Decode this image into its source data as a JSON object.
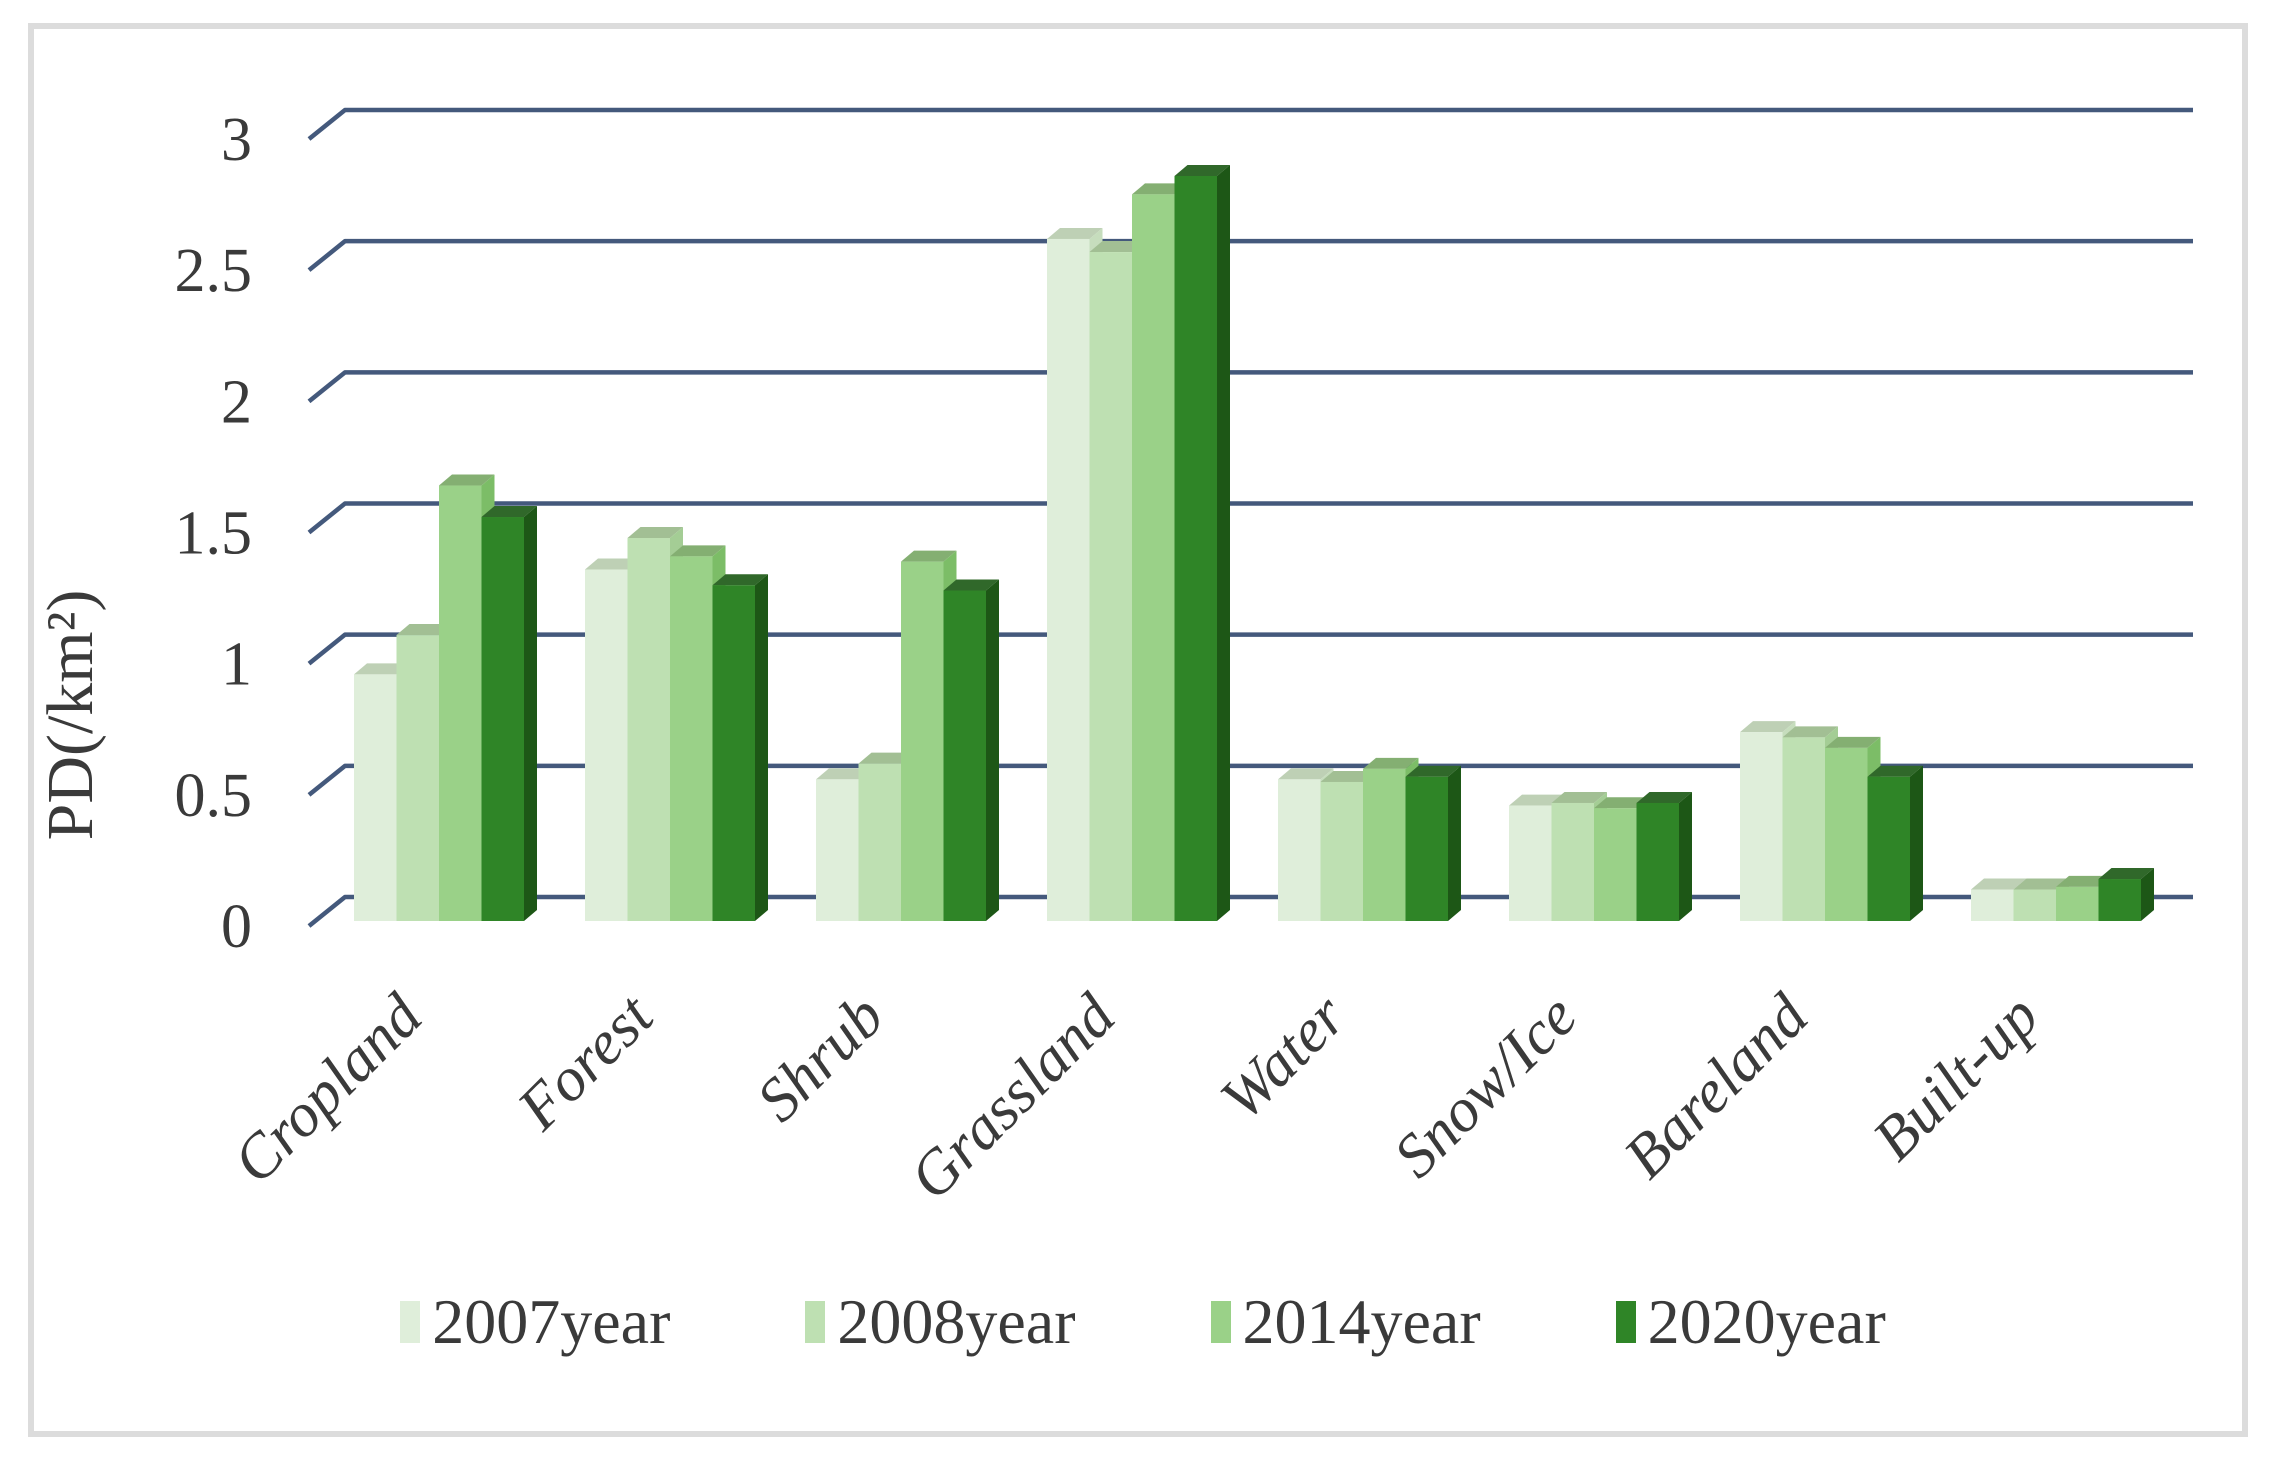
{
  "frame": {
    "border_color": "#dcdcdc",
    "background": "#ffffff"
  },
  "chart_data": {
    "type": "bar",
    "variant": "3d-clustered-column",
    "title": "",
    "ylabel": "PD(/km²)",
    "xlabel": "",
    "categories": [
      "Cropland",
      "Forest",
      "Shrub",
      "Grassland",
      "Water",
      "Snow/Ice",
      "Bareland",
      "Built-up"
    ],
    "series": [
      {
        "name": "2007year",
        "values": [
          0.94,
          1.34,
          0.54,
          2.6,
          0.54,
          0.44,
          0.72,
          0.12
        ],
        "color": "#dfeeda",
        "side_color": "#c6ddbd",
        "top_color": "#bed0b5"
      },
      {
        "name": "2008year",
        "values": [
          1.09,
          1.46,
          0.6,
          2.55,
          0.53,
          0.45,
          0.7,
          0.12
        ],
        "color": "#bee0b2",
        "side_color": "#a4cd95",
        "top_color": "#a2bf94"
      },
      {
        "name": "2014year",
        "values": [
          1.66,
          1.39,
          1.37,
          2.77,
          0.58,
          0.43,
          0.66,
          0.13
        ],
        "color": "#9ad188",
        "side_color": "#7cbd67",
        "top_color": "#84af72"
      },
      {
        "name": "2020year",
        "values": [
          1.54,
          1.28,
          1.26,
          2.84,
          0.55,
          0.45,
          0.55,
          0.16
        ],
        "color": "#2f8527",
        "side_color": "#1d5716",
        "top_color": "#30682a"
      }
    ],
    "y_ticks": [
      "0",
      "0.5",
      "1",
      "1.5",
      "2",
      "2.5",
      "3"
    ],
    "ylim": [
      0,
      3
    ],
    "grid": true,
    "gridline_color": "#44597c",
    "axis_text_color": "#3a3a3a",
    "legend_position": "bottom"
  }
}
